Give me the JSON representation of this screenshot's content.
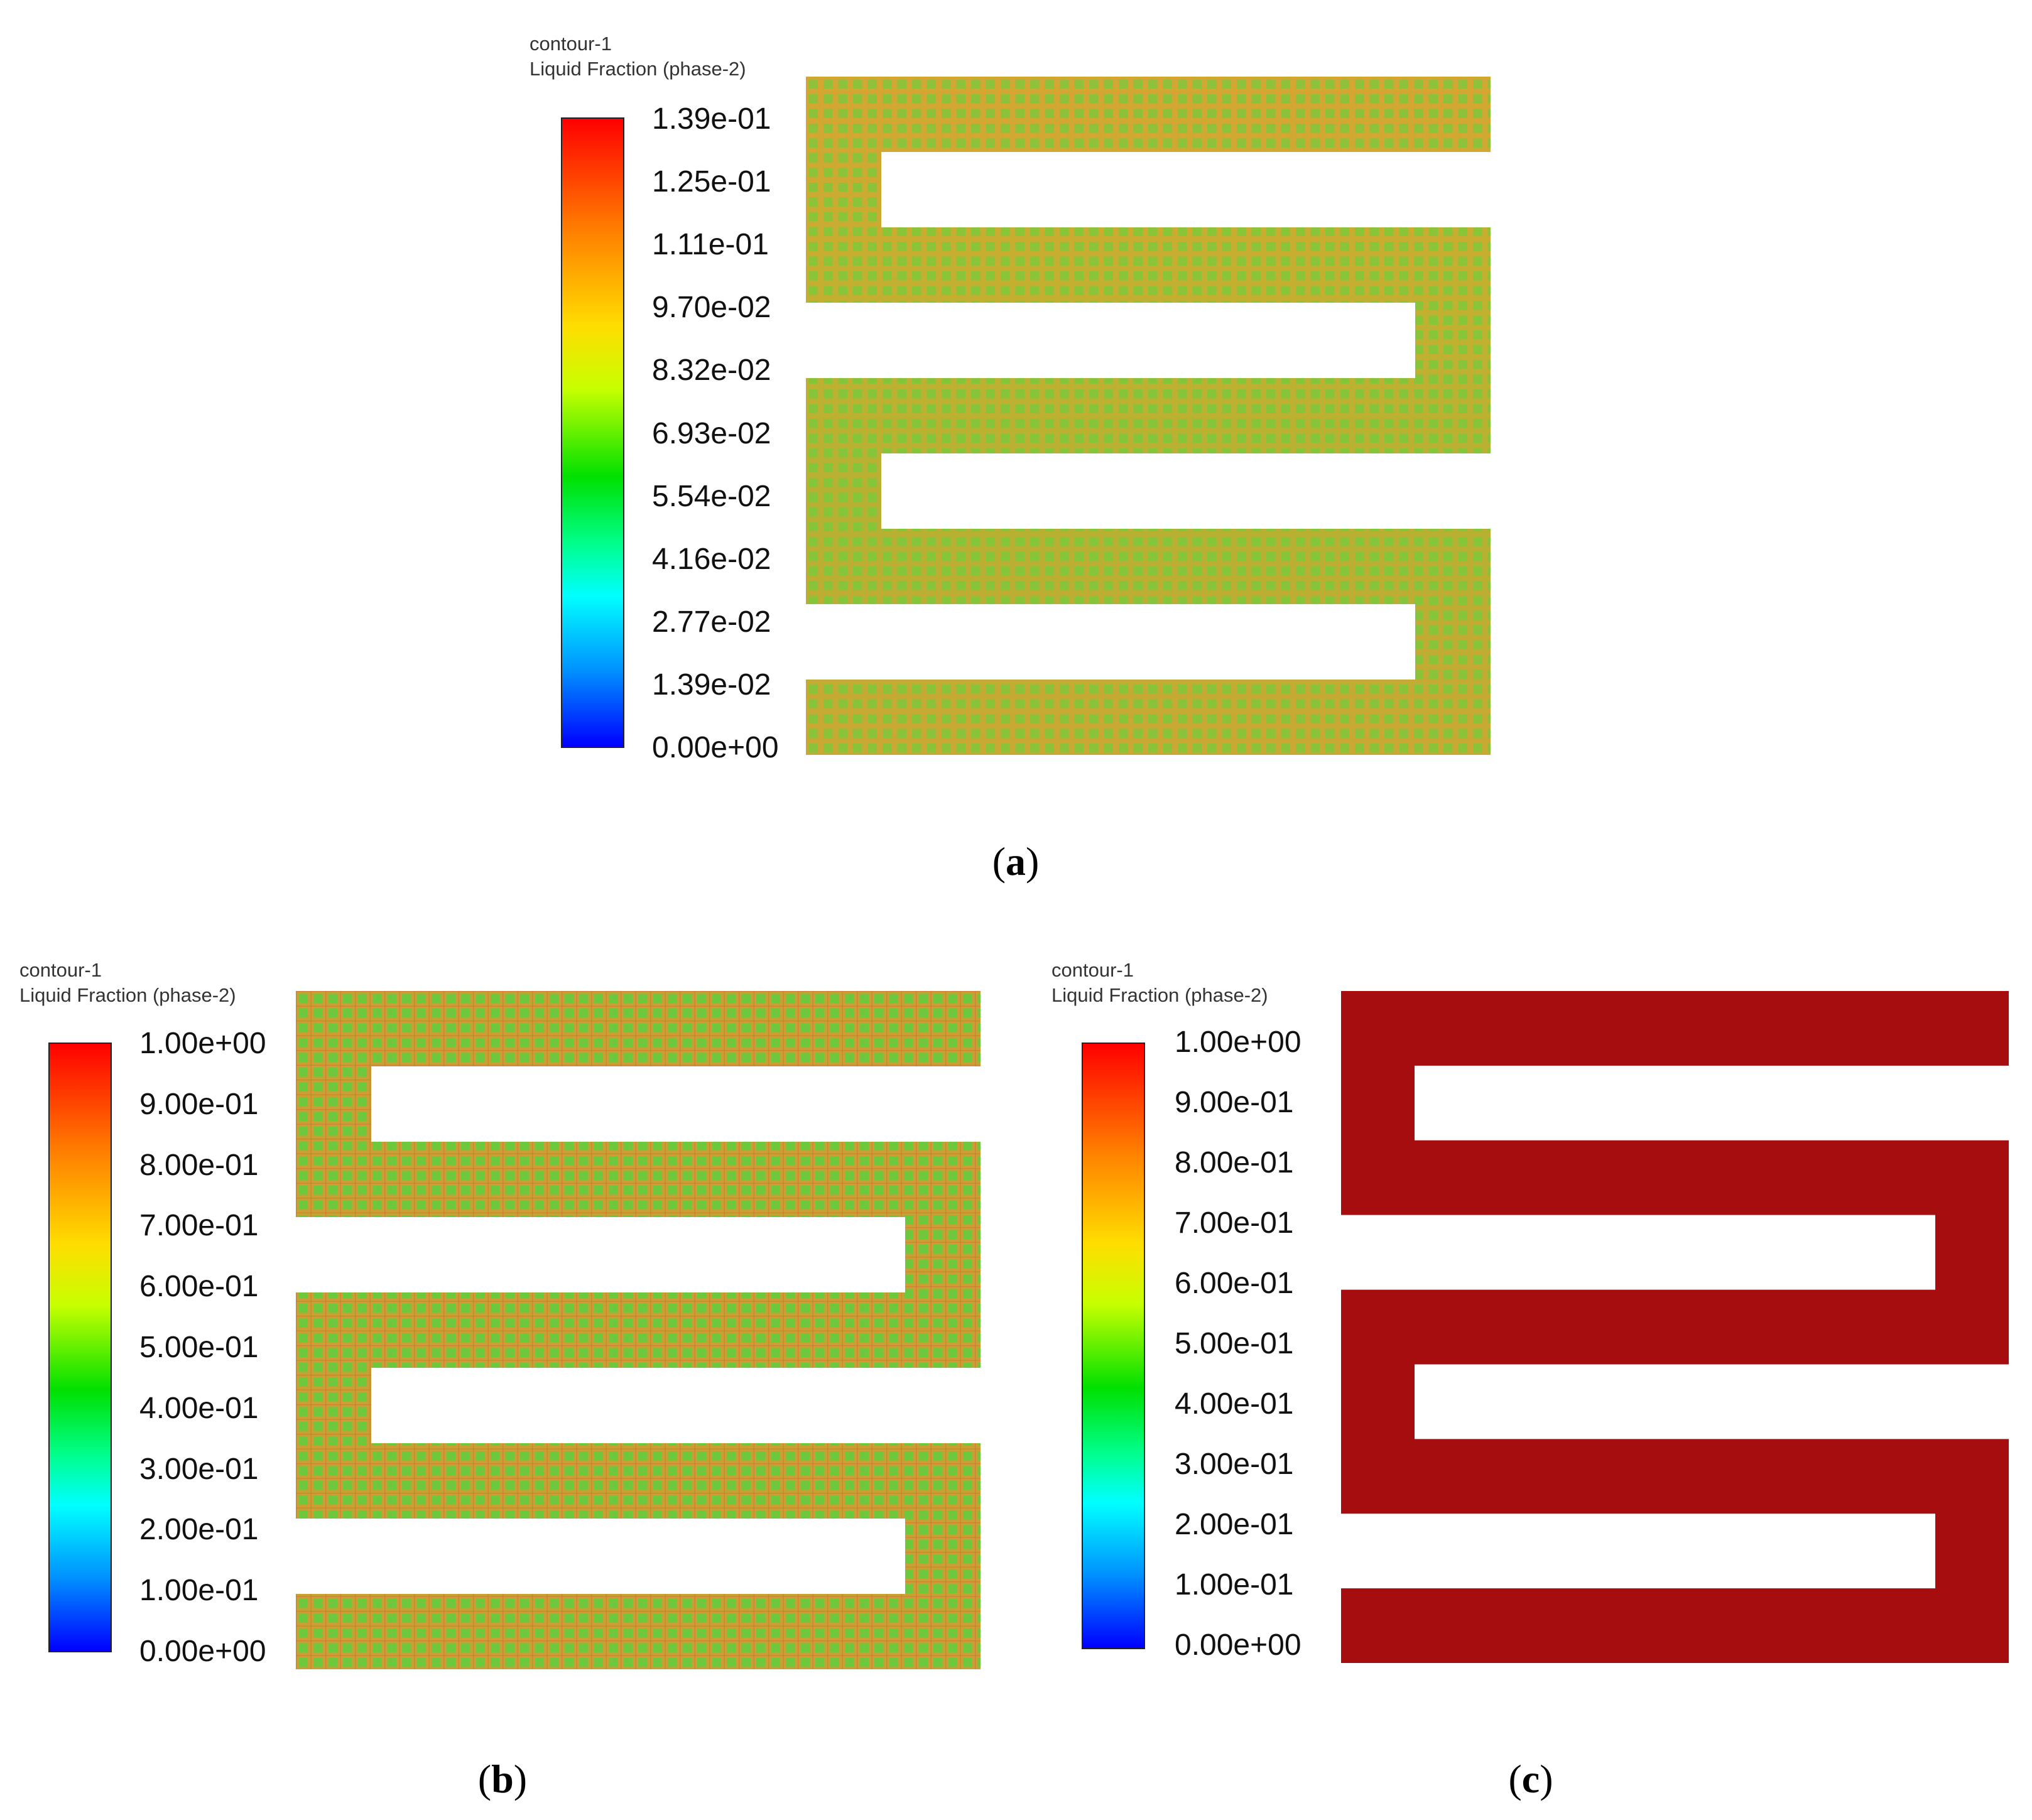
{
  "panels": [
    {
      "id": "a",
      "header_line1": "contour-1",
      "header_line2": "Liquid Fraction (phase-2)",
      "ticks": [
        "1.39e-01",
        "1.25e-01",
        "1.11e-01",
        "9.70e-02",
        "8.32e-02",
        "6.93e-02",
        "5.54e-02",
        "4.16e-02",
        "2.77e-02",
        "1.39e-02",
        "0.00e+00"
      ],
      "caption_open": "(",
      "caption_label": "a",
      "caption_close": ")",
      "fill": "mesh-green-red"
    },
    {
      "id": "b",
      "header_line1": "contour-1",
      "header_line2": "Liquid Fraction (phase-2)",
      "ticks": [
        "1.00e+00",
        "9.00e-01",
        "8.00e-01",
        "7.00e-01",
        "6.00e-01",
        "5.00e-01",
        "4.00e-01",
        "3.00e-01",
        "2.00e-01",
        "1.00e-01",
        "0.00e+00"
      ],
      "caption_open": "(",
      "caption_label": "b",
      "caption_close": ")",
      "fill": "mesh-green"
    },
    {
      "id": "c",
      "header_line1": "contour-1",
      "header_line2": "Liquid Fraction (phase-2)",
      "ticks": [
        "1.00e+00",
        "9.00e-01",
        "8.00e-01",
        "7.00e-01",
        "6.00e-01",
        "5.00e-01",
        "4.00e-01",
        "3.00e-01",
        "2.00e-01",
        "1.00e-01",
        "0.00e+00"
      ],
      "caption_open": "(",
      "caption_label": "c",
      "caption_close": ")",
      "fill": "#a50d0f"
    }
  ]
}
